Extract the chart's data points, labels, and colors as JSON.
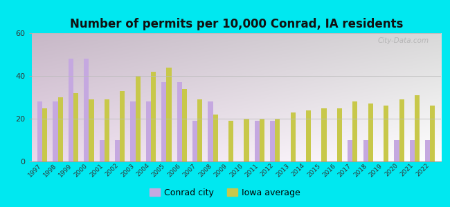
{
  "title": "Number of permits per 10,000 Conrad, IA residents",
  "years": [
    1997,
    1998,
    1999,
    2000,
    2001,
    2002,
    2003,
    2004,
    2005,
    2006,
    2007,
    2008,
    2009,
    2010,
    2011,
    2012,
    2013,
    2014,
    2015,
    2016,
    2017,
    2018,
    2019,
    2020,
    2021,
    2022
  ],
  "conrad": [
    28,
    28,
    48,
    48,
    10,
    10,
    28,
    28,
    37,
    37,
    19,
    28,
    0,
    0,
    19,
    19,
    0,
    0,
    0,
    0,
    10,
    10,
    0,
    10,
    10,
    10
  ],
  "iowa": [
    25,
    30,
    32,
    29,
    29,
    33,
    40,
    42,
    44,
    34,
    29,
    22,
    19,
    20,
    20,
    20,
    23,
    24,
    25,
    25,
    28,
    27,
    26,
    29,
    31,
    26
  ],
  "bar_color_conrad": "#c5a8e0",
  "bar_color_iowa": "#c8c84a",
  "outer_background": "#00e8f0",
  "ylim": [
    0,
    60
  ],
  "yticks": [
    0,
    20,
    40,
    60
  ],
  "legend_conrad": "Conrad city",
  "legend_iowa": "Iowa average",
  "watermark": "City-Data.com",
  "title_fontsize": 12,
  "bar_width": 0.32,
  "figsize": [
    6.5,
    3.0
  ]
}
